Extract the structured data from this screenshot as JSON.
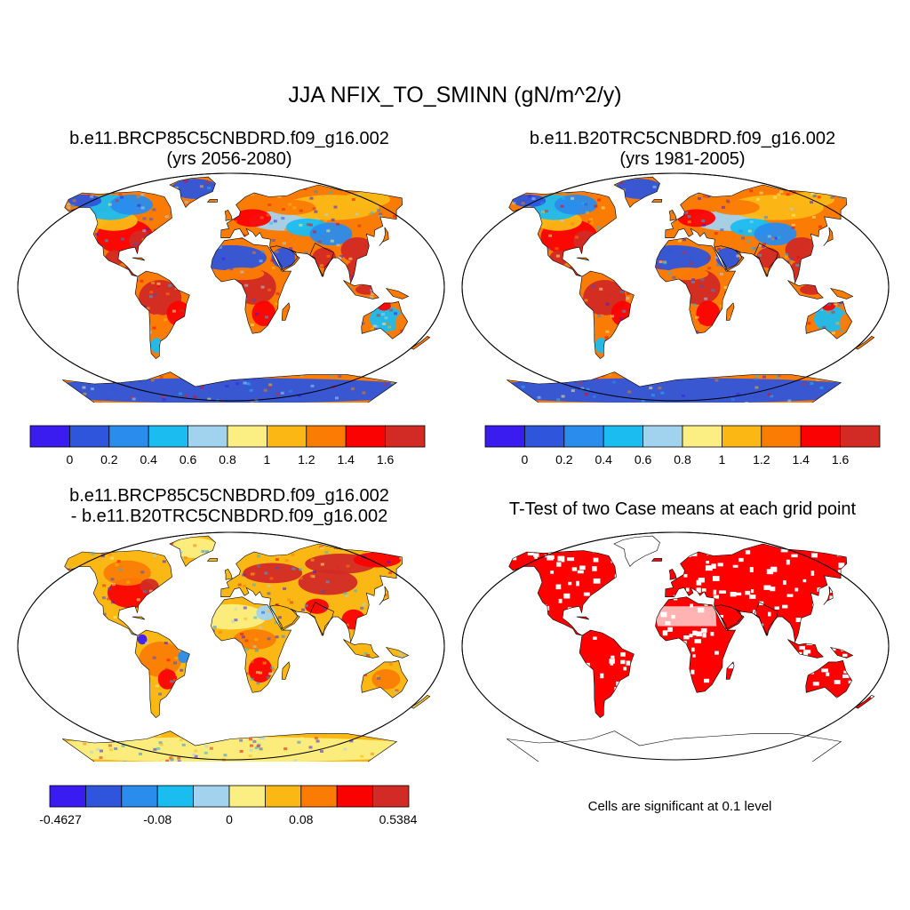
{
  "figure": {
    "title": "JJA NFIX_TO_SMINN (gN/m^2/y)"
  },
  "panels": [
    {
      "id": "case1",
      "title_line1": "b.e11.BRCP85C5CNBDRD.f09_g16.002",
      "title_line2": "(yrs 2056-2080)",
      "colorbar_labels": [
        "0",
        "0.2",
        "0.4",
        "0.6",
        "0.8",
        "1",
        "1.2",
        "1.4",
        "1.6"
      ]
    },
    {
      "id": "case2",
      "title_line1": "b.e11.B20TRC5CNBDRD.f09_g16.002",
      "title_line2": "(yrs 1981-2005)",
      "colorbar_labels": [
        "0",
        "0.2",
        "0.4",
        "0.6",
        "0.8",
        "1",
        "1.2",
        "1.4",
        "1.6"
      ]
    },
    {
      "id": "difference",
      "title_line1": "b.e11.BRCP85C5CNBDRD.f09_g16.002",
      "title_line2": "- b.e11.B20TRC5CNBDRD.f09_g16.002",
      "colorbar_labels": [
        "-0.4627",
        "-0.08",
        "0",
        "0.08",
        "0.5384"
      ]
    },
    {
      "id": "ttest",
      "title_line1": "T-Test of two Case means at each grid point",
      "note": "Cells are significant at 0.1 level"
    }
  ],
  "colors": {
    "scale": [
      "#3a1cf0",
      "#2e55db",
      "#2a8cec",
      "#1bbcf0",
      "#a2d3ee",
      "#fbee82",
      "#fbb815",
      "#fb7c05",
      "#fb0202",
      "#d22a25"
    ],
    "significant": "#ff0000",
    "ocean": "#ffffff",
    "border": "#000000"
  }
}
